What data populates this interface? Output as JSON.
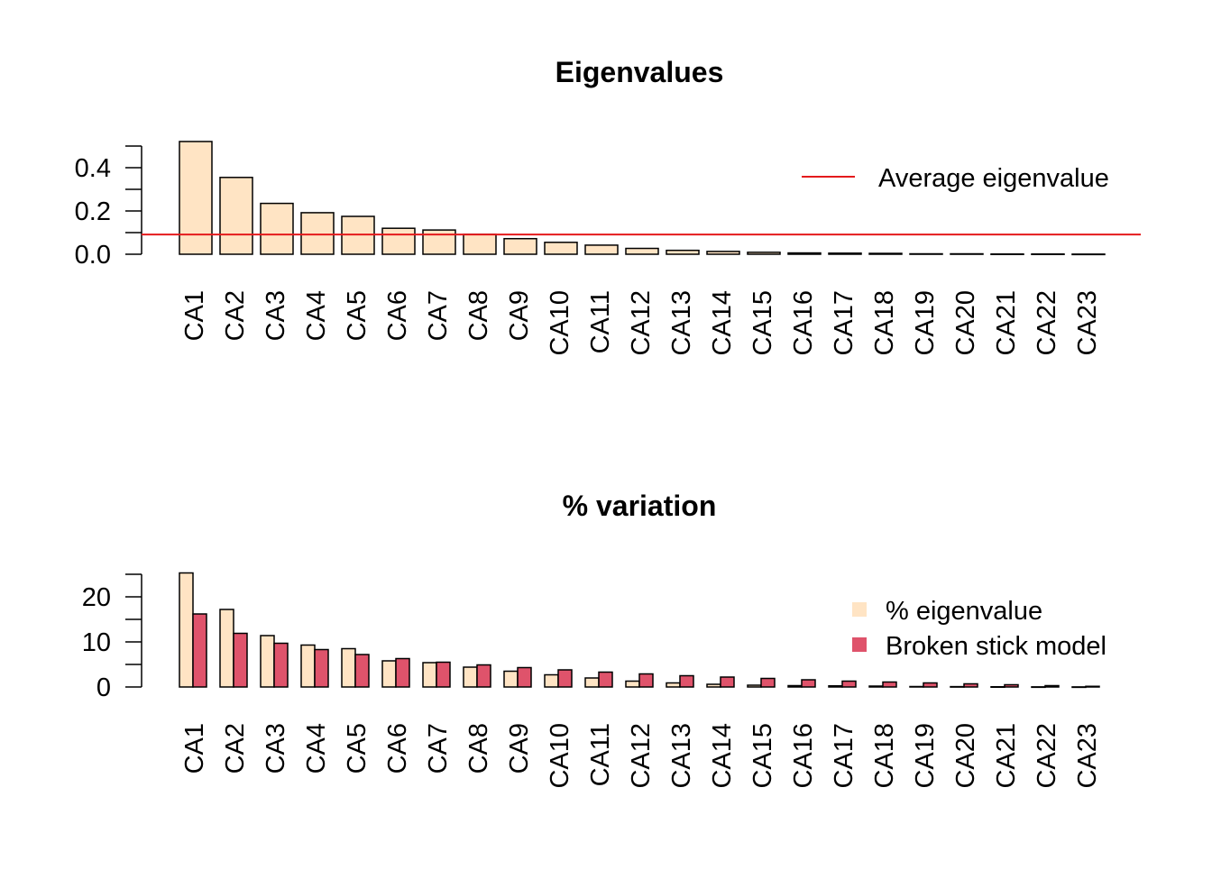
{
  "chart_data": [
    {
      "type": "bar",
      "title": "Eigenvalues",
      "categories": [
        "CA1",
        "CA2",
        "CA3",
        "CA4",
        "CA5",
        "CA6",
        "CA7",
        "CA8",
        "CA9",
        "CA10",
        "CA11",
        "CA12",
        "CA13",
        "CA14",
        "CA15",
        "CA16",
        "CA17",
        "CA18",
        "CA19",
        "CA20",
        "CA21",
        "CA22",
        "CA23"
      ],
      "values": [
        0.521,
        0.355,
        0.235,
        0.192,
        0.175,
        0.12,
        0.112,
        0.092,
        0.072,
        0.055,
        0.042,
        0.027,
        0.018,
        0.013,
        0.009,
        0.006,
        0.005,
        0.004,
        0.002,
        0.002,
        0.001,
        0.001,
        0.0005
      ],
      "yticks": [
        0.0,
        0.2,
        0.4
      ],
      "ytick_labels": [
        "0.0",
        "0.2",
        "0.4"
      ],
      "ylim": [
        0,
        0.5
      ],
      "reference_line": {
        "label": "Average eigenvalue",
        "value": 0.0909,
        "color": "#e41a1c"
      },
      "bar_color": "#ffe4c4",
      "legend_position": "top-right"
    },
    {
      "type": "bar",
      "title": "% variation",
      "categories": [
        "CA1",
        "CA2",
        "CA3",
        "CA4",
        "CA5",
        "CA6",
        "CA7",
        "CA8",
        "CA9",
        "CA10",
        "CA11",
        "CA12",
        "CA13",
        "CA14",
        "CA15",
        "CA16",
        "CA17",
        "CA18",
        "CA19",
        "CA20",
        "CA21",
        "CA22",
        "CA23"
      ],
      "series": [
        {
          "name": "% eigenvalue",
          "color": "#ffe4c4",
          "values": [
            25.3,
            17.2,
            11.4,
            9.3,
            8.5,
            5.8,
            5.4,
            4.4,
            3.5,
            2.7,
            2.0,
            1.3,
            0.9,
            0.6,
            0.4,
            0.3,
            0.25,
            0.2,
            0.1,
            0.08,
            0.05,
            0.03,
            0.02
          ]
        },
        {
          "name": "Broken stick model",
          "color": "#df536b",
          "values": [
            16.2,
            11.9,
            9.7,
            8.3,
            7.2,
            6.3,
            5.5,
            4.9,
            4.3,
            3.8,
            3.3,
            2.9,
            2.5,
            2.2,
            1.9,
            1.6,
            1.3,
            1.1,
            0.9,
            0.7,
            0.5,
            0.3,
            0.15
          ]
        }
      ],
      "yticks": [
        0,
        10,
        20
      ],
      "ytick_labels": [
        "0",
        "10",
        "20"
      ],
      "ylim": [
        0,
        25
      ],
      "legend_position": "top-right"
    }
  ]
}
